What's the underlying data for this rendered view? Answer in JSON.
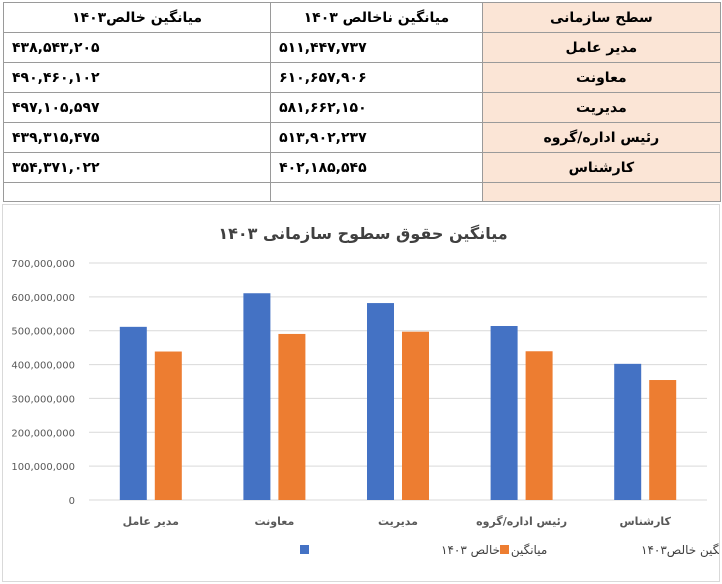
{
  "table": {
    "headers": {
      "level": "سطح سازمانی",
      "gross": "میانگین ناخالص ۱۴۰۳",
      "net": "میانگین خالص۱۴۰۳"
    },
    "rows": [
      {
        "level": "مدیر عامل",
        "gross": "۵۱۱,۴۴۷,۷۳۷",
        "net": "۴۳۸,۵۴۳,۲۰۵"
      },
      {
        "level": "معاونت",
        "gross": "۶۱۰,۶۵۷,۹۰۶",
        "net": "۴۹۰,۴۶۰,۱۰۲"
      },
      {
        "level": "مدیریت",
        "gross": "۵۸۱,۶۶۲,۱۵۰",
        "net": "۴۹۷,۱۰۵,۵۹۷"
      },
      {
        "level": "رئیس اداره/گروه",
        "gross": "۵۱۳,۹۰۲,۲۳۷",
        "net": "۴۳۹,۳۱۵,۴۷۵"
      },
      {
        "level": "کارشناس",
        "gross": "۴۰۲,۱۸۵,۵۴۵",
        "net": "۳۵۴,۳۷۱,۰۲۲"
      }
    ]
  },
  "chart_data": {
    "type": "bar",
    "title": "میانگین حقوق  سطوح سازمانی ۱۴۰۳",
    "categories": [
      "مدیر عامل",
      "معاونت",
      "مدیریت",
      "رئیس اداره/گروه",
      "کارشناس"
    ],
    "series": [
      {
        "name": "میانگین ناخالص ۱۴۰۳",
        "color": "#4472c4",
        "values": [
          511447737,
          610657906,
          581662150,
          513902237,
          402185545
        ]
      },
      {
        "name": "میانگین خالص۱۴۰۳",
        "color": "#ed7d31",
        "values": [
          438543205,
          490460102,
          497105597,
          439315475,
          354371022
        ]
      }
    ],
    "ylim": [
      0,
      700000000
    ],
    "yticks": [
      0,
      100000000,
      200000000,
      300000000,
      400000000,
      500000000,
      600000000,
      700000000
    ],
    "ytick_labels": [
      "0",
      "100,000,000",
      "200,000,000",
      "300,000,000",
      "400,000,000",
      "500,000,000",
      "600,000,000",
      "700,000,000"
    ],
    "grid": true,
    "legend": "bottom"
  }
}
